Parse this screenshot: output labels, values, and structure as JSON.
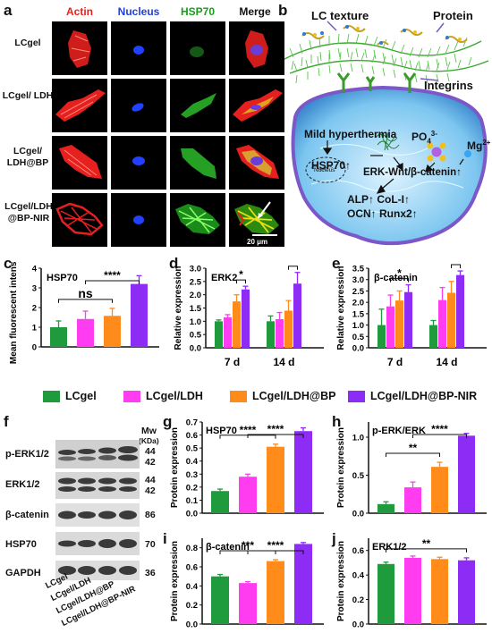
{
  "panels": {
    "a": "a",
    "b": "b",
    "c": "c",
    "d": "d",
    "e": "e",
    "f": "f",
    "g": "g",
    "h": "h",
    "i": "i",
    "j": "j"
  },
  "micro": {
    "headers": [
      "Actin",
      "Nucleus",
      "HSP70",
      "Merge"
    ],
    "header_colors": [
      "#e8211c",
      "#1f3fe0",
      "#1a9c1a",
      "#111111"
    ],
    "rows": [
      "LCgel",
      "LCgel/ LDH",
      "LCgel/ LDH@BP",
      "LCgel/LDH @BP-NIR"
    ],
    "scale_bar": "20 μm"
  },
  "schematic": {
    "lc_texture": "LC texture",
    "protein": "Protein",
    "integrins": "Integrins",
    "mild": "Mild hyperthermia",
    "hsp70": "HSP70↑",
    "po4": "PO",
    "po4_sub": "4",
    "po4_sup": "3-",
    "mg": "Mg",
    "mg_sup": "2+",
    "erk": "ERK-Wnt/β-catenin↑",
    "nucleus": "Nucleus",
    "alp": "ALP↑ CoL-I↑",
    "ocn": "OCN↑ Runx2↑"
  },
  "series_colors": [
    "#1f9a3c",
    "#ff3cf0",
    "#ff8c1a",
    "#8c2cf5"
  ],
  "legend": [
    "LCgel",
    "LCgel/LDH",
    "LCgel/LDH@BP",
    "LCgel/LDH@BP-NIR"
  ],
  "blot": {
    "rows": [
      "p-ERK1/2",
      "ERK1/2",
      "β-catenin",
      "HSP70",
      "GAPDH"
    ],
    "mw_header": "Mw",
    "mw_unit": "(KDa)",
    "mw": [
      "44\n42",
      "44\n42",
      "86",
      "70",
      "36"
    ],
    "lanes": [
      "LCgel",
      "LCgel/LDH",
      "LCgel/LDH@BP",
      "LCgel/LDH@BP-NIR"
    ]
  },
  "chart_data": [
    {
      "panel": "c",
      "type": "bar",
      "title": "HSP70",
      "ylabel": "Mean fluorescent intensity",
      "ylim": [
        0,
        4
      ],
      "yticks": [
        "0",
        "1",
        "2",
        "3",
        "4"
      ],
      "values": [
        1.0,
        1.42,
        1.58,
        3.2
      ],
      "errors": [
        0.32,
        0.4,
        0.38,
        0.42
      ],
      "sig": [
        {
          "label": "****",
          "from": 1,
          "to": 3
        },
        {
          "label": "ns",
          "from": 0,
          "to": 2
        }
      ]
    },
    {
      "panel": "d",
      "type": "bar",
      "title": "ERK2",
      "ylabel": "Relative expression",
      "ylim": [
        0,
        3
      ],
      "yticks": [
        "0.0",
        "0.5",
        "1.0",
        "1.5",
        "2.0",
        "2.5",
        "3.0"
      ],
      "categories": [
        "7 d",
        "14 d"
      ],
      "series": [
        {
          "values": [
            1.0,
            1.0
          ],
          "errors": [
            0.05,
            0.2
          ]
        },
        {
          "values": [
            1.15,
            1.08
          ],
          "errors": [
            0.1,
            0.25
          ]
        },
        {
          "values": [
            1.75,
            1.4
          ],
          "errors": [
            0.25,
            0.38
          ]
        },
        {
          "values": [
            2.2,
            2.42
          ],
          "errors": [
            0.12,
            0.42
          ]
        }
      ],
      "sig": [
        {
          "label": "*",
          "group": 0,
          "from": 2,
          "to": 3
        },
        {
          "label": "*",
          "group": 1,
          "from": 2,
          "to": 3
        }
      ]
    },
    {
      "panel": "e",
      "type": "bar",
      "title": "β-catenin",
      "ylabel": "Relative expression",
      "ylim": [
        0,
        3.5
      ],
      "yticks": [
        "0.0",
        "0.5",
        "1.0",
        "1.5",
        "2.0",
        "2.5",
        "3.0",
        "3.5"
      ],
      "categories": [
        "7 d",
        "14 d"
      ],
      "series": [
        {
          "values": [
            1.0,
            1.0
          ],
          "errors": [
            0.7,
            0.2
          ]
        },
        {
          "values": [
            1.82,
            2.1
          ],
          "errors": [
            0.5,
            0.55
          ]
        },
        {
          "values": [
            2.08,
            2.42
          ],
          "errors": [
            0.42,
            0.5
          ]
        },
        {
          "values": [
            2.45,
            3.2
          ],
          "errors": [
            0.32,
            0.18
          ]
        }
      ],
      "sig": [
        {
          "label": "*",
          "group": 0,
          "from": 1,
          "to": 3
        },
        {
          "label": "**",
          "group": 1,
          "from": 2,
          "to": 3
        }
      ]
    },
    {
      "panel": "g",
      "type": "bar",
      "title": "HSP70",
      "ylabel": "Protein expression",
      "ylim": [
        0,
        0.7
      ],
      "yticks": [
        "0.0",
        "0.1",
        "0.2",
        "0.3",
        "0.4",
        "0.5",
        "0.6",
        "0.7"
      ],
      "values": [
        0.17,
        0.28,
        0.51,
        0.63
      ],
      "errors": [
        0.015,
        0.02,
        0.02,
        0.025
      ],
      "sig": [
        {
          "label": "****",
          "from": 1,
          "to": 3
        },
        {
          "label": "****",
          "from": 0,
          "to": 2
        }
      ]
    },
    {
      "panel": "h",
      "type": "bar",
      "title": "p-ERK/ERK",
      "ylabel": "Protein expression",
      "ylim": [
        0,
        1.2
      ],
      "yticks": [
        "0.0",
        "0.5",
        "1.0"
      ],
      "values": [
        0.12,
        0.34,
        0.61,
        1.02
      ],
      "errors": [
        0.03,
        0.07,
        0.06,
        0.03
      ],
      "sig": [
        {
          "label": "****",
          "from": 1,
          "to": 3
        },
        {
          "label": "**",
          "from": 0,
          "to": 2
        }
      ]
    },
    {
      "panel": "i",
      "type": "bar",
      "title": "β-catenin",
      "ylabel": "Protein expression",
      "ylim": [
        0,
        0.9
      ],
      "yticks": [
        "0.0",
        "0.2",
        "0.4",
        "0.6",
        "0.8"
      ],
      "values": [
        0.5,
        0.43,
        0.66,
        0.84
      ],
      "errors": [
        0.02,
        0.015,
        0.015,
        0.015
      ],
      "sig": [
        {
          "label": "****",
          "from": 1,
          "to": 3
        },
        {
          "label": "***",
          "from": 0,
          "to": 2
        }
      ]
    },
    {
      "panel": "j",
      "type": "bar",
      "title": "ERK1/2",
      "ylabel": "Protein expression",
      "ylim": [
        0,
        0.7
      ],
      "yticks": [
        "0.0",
        "0.2",
        "0.4",
        "0.6"
      ],
      "values": [
        0.49,
        0.54,
        0.53,
        0.52
      ],
      "errors": [
        0.015,
        0.015,
        0.015,
        0.02
      ],
      "sig": [
        {
          "label": "**",
          "from": 0,
          "to": 3
        }
      ]
    }
  ]
}
